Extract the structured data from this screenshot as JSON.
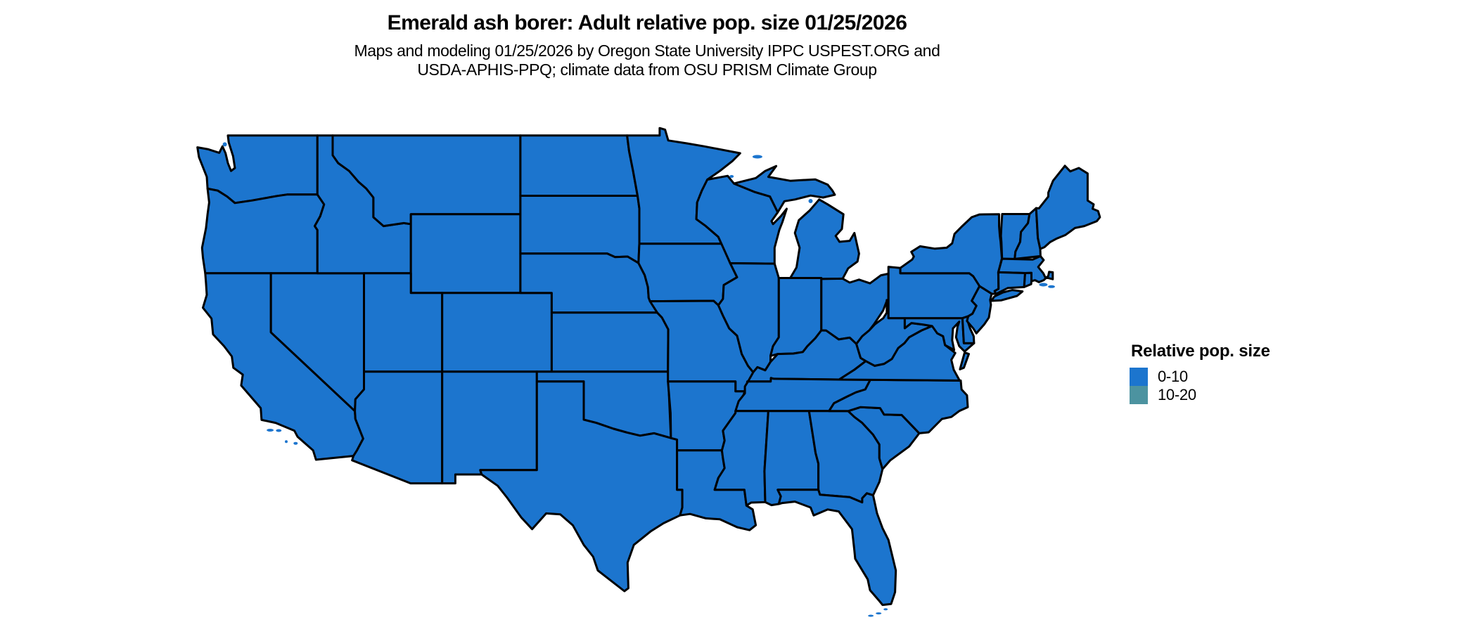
{
  "header": {
    "title": "Emerald ash borer: Adult relative pop. size 01/25/2026",
    "subtitle_line1": "Maps and modeling 01/25/2026 by Oregon State University IPPC USPEST.ORG and",
    "subtitle_line2": "USDA-APHIS-PPQ; climate data from OSU PRISM Climate Group"
  },
  "legend": {
    "title": "Relative pop. size",
    "items": [
      {
        "label": "0-10",
        "color": "#1C75CE"
      },
      {
        "label": "10-20",
        "color": "#4C93A0"
      }
    ]
  },
  "map": {
    "region": "contiguous United States",
    "projection": "equirectangular",
    "stroke_color": "#000000",
    "background": "#FFFFFF",
    "states": [
      {
        "id": "WA",
        "value": "0-10"
      },
      {
        "id": "OR",
        "value": "0-10"
      },
      {
        "id": "CA",
        "value": "0-10"
      },
      {
        "id": "NV",
        "value": "0-10"
      },
      {
        "id": "ID",
        "value": "0-10"
      },
      {
        "id": "MT",
        "value": "0-10"
      },
      {
        "id": "WY",
        "value": "0-10"
      },
      {
        "id": "UT",
        "value": "0-10"
      },
      {
        "id": "CO",
        "value": "0-10"
      },
      {
        "id": "AZ",
        "value": "0-10"
      },
      {
        "id": "NM",
        "value": "0-10"
      },
      {
        "id": "ND",
        "value": "0-10"
      },
      {
        "id": "SD",
        "value": "0-10"
      },
      {
        "id": "NE",
        "value": "0-10"
      },
      {
        "id": "KS",
        "value": "0-10"
      },
      {
        "id": "OK",
        "value": "0-10"
      },
      {
        "id": "TX",
        "value": "0-10"
      },
      {
        "id": "MN",
        "value": "0-10"
      },
      {
        "id": "IA",
        "value": "0-10"
      },
      {
        "id": "MO",
        "value": "0-10"
      },
      {
        "id": "AR",
        "value": "0-10"
      },
      {
        "id": "LA",
        "value": "0-10"
      },
      {
        "id": "WI",
        "value": "0-10"
      },
      {
        "id": "IL",
        "value": "0-10"
      },
      {
        "id": "MI",
        "value": "0-10"
      },
      {
        "id": "IN",
        "value": "0-10"
      },
      {
        "id": "OH",
        "value": "0-10"
      },
      {
        "id": "KY",
        "value": "0-10"
      },
      {
        "id": "TN",
        "value": "0-10"
      },
      {
        "id": "MS",
        "value": "0-10"
      },
      {
        "id": "AL",
        "value": "0-10"
      },
      {
        "id": "GA",
        "value": "0-10"
      },
      {
        "id": "FL",
        "value": "0-10"
      },
      {
        "id": "SC",
        "value": "0-10"
      },
      {
        "id": "NC",
        "value": "0-10"
      },
      {
        "id": "VA",
        "value": "0-10"
      },
      {
        "id": "WV",
        "value": "0-10"
      },
      {
        "id": "MD",
        "value": "0-10"
      },
      {
        "id": "DE",
        "value": "0-10"
      },
      {
        "id": "NJ",
        "value": "0-10"
      },
      {
        "id": "PA",
        "value": "0-10"
      },
      {
        "id": "NY",
        "value": "0-10"
      },
      {
        "id": "VT",
        "value": "0-10"
      },
      {
        "id": "NH",
        "value": "0-10"
      },
      {
        "id": "ME",
        "value": "0-10"
      },
      {
        "id": "MA",
        "value": "0-10"
      },
      {
        "id": "RI",
        "value": "0-10"
      },
      {
        "id": "CT",
        "value": "0-10"
      }
    ]
  }
}
